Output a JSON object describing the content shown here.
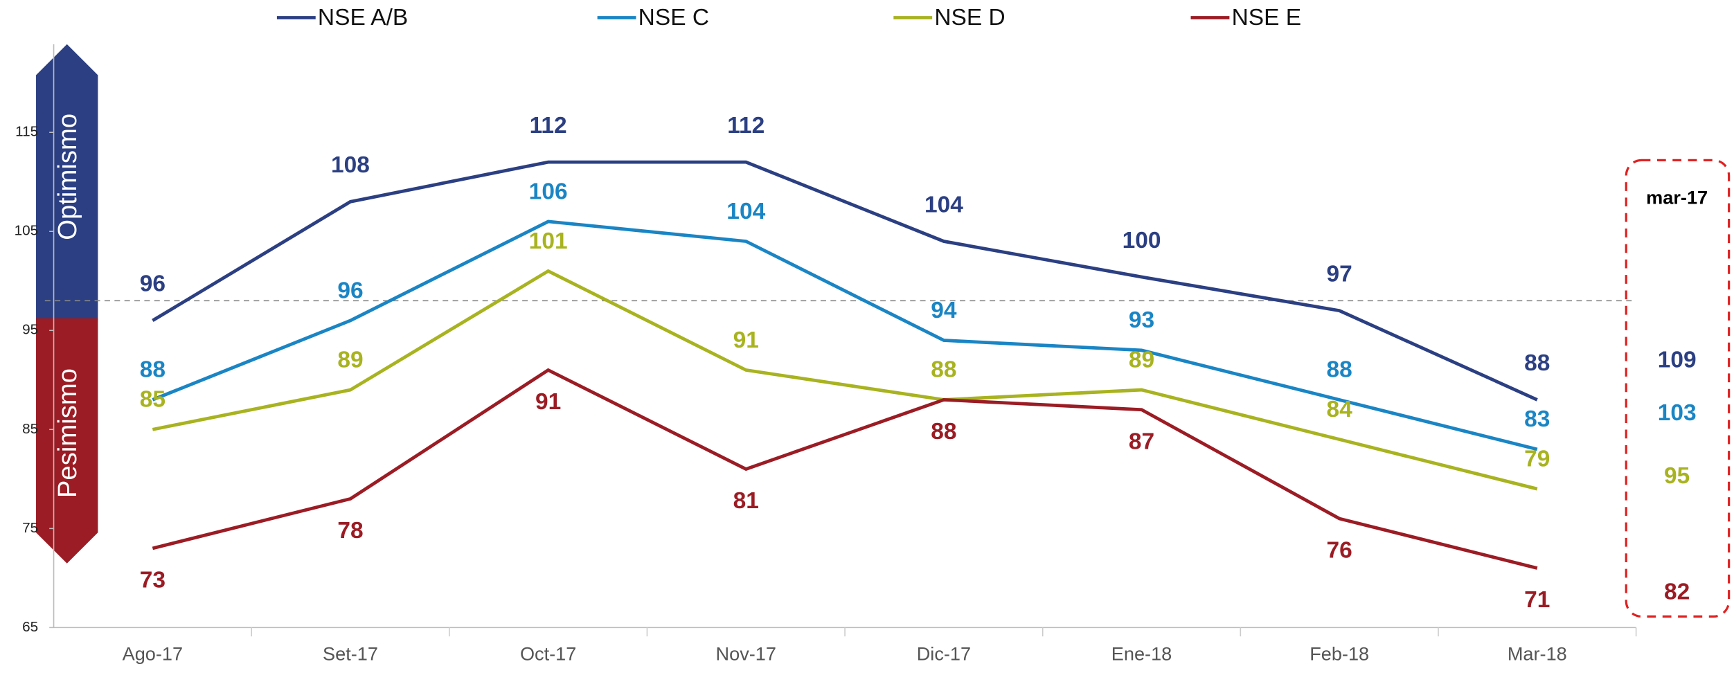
{
  "chart_data": {
    "type": "line",
    "categories": [
      "Ago-17",
      "Set-17",
      "Oct-17",
      "Nov-17",
      "Dic-17",
      "Ene-18",
      "Feb-18",
      "Mar-18"
    ],
    "series": [
      {
        "name": "NSE A/B",
        "color": "#2b3f82",
        "values": [
          96,
          108,
          112,
          112,
          104,
          100.4,
          97,
          88
        ],
        "value_labels": [
          "96",
          "108",
          "112",
          "112",
          "104",
          "100",
          "97",
          "88"
        ]
      },
      {
        "name": "NSE C",
        "color": "#1a85c4",
        "values": [
          88,
          96,
          106,
          104,
          94,
          93,
          88,
          83
        ]
      },
      {
        "name": "NSE D",
        "color": "#a8b320",
        "values": [
          85,
          89,
          101,
          91,
          88,
          89,
          84,
          79
        ]
      },
      {
        "name": "NSE E",
        "color": "#9b1c24",
        "values": [
          73,
          78,
          91,
          81,
          88,
          87,
          76,
          71
        ]
      }
    ],
    "ylim": [
      65,
      120
    ],
    "yticks": [
      65,
      75,
      85,
      95,
      105,
      115
    ],
    "reference_line": 98,
    "annotations": {
      "upper": "Optimismo",
      "lower": "Pesimismo"
    },
    "comparison": {
      "label": "mar-17",
      "values": [
        109,
        103,
        95,
        82
      ]
    }
  }
}
